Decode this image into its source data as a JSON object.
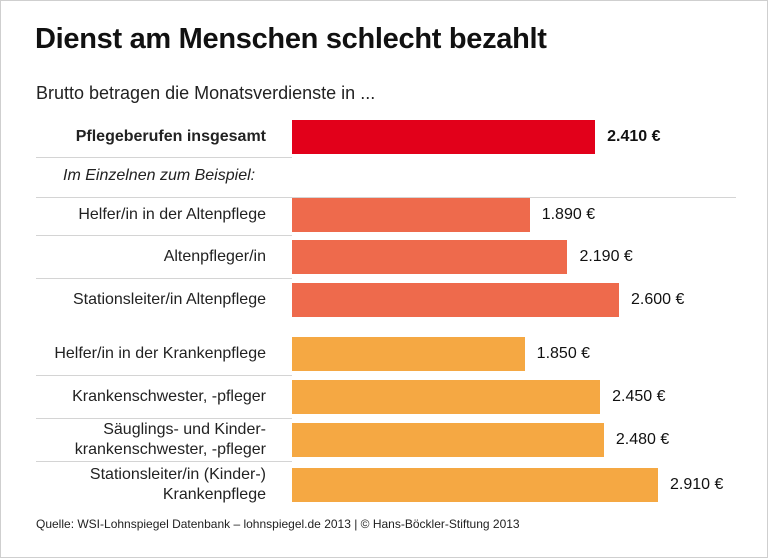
{
  "chart_data": {
    "type": "bar",
    "title": "Dienst am Menschen schlecht bezahlt",
    "subtitle": "Brutto betragen die Monatsverdienste in ...",
    "group_label": "Im Einzelnen zum Beispiel:",
    "categories": [
      "Pflegeberufen insgesamt",
      "Helfer/in in der Altenpflege",
      "Altenpfleger/in",
      "Stationsleiter/in Altenpflege",
      "Helfer/in in der Krankenpflege",
      "Krankenschwester, -pfleger",
      "Säuglings- und Kinder-\nkrankenschwester, -pfleger",
      "Stationsleiter/in (Kinder-)\nKrankenpflege"
    ],
    "values": [
      2410,
      1890,
      2190,
      2600,
      1850,
      2450,
      2480,
      2910
    ],
    "value_labels": [
      "2.410 €",
      "1.890 €",
      "2.190 €",
      "2.600 €",
      "1.850 €",
      "2.450 €",
      "2.480 €",
      "2.910 €"
    ],
    "colors": [
      "#e2001a",
      "#ee6a4c",
      "#ee6a4c",
      "#ee6a4c",
      "#f5a843",
      "#f5a843",
      "#f5a843",
      "#f5a843"
    ],
    "source": "Quelle: WSI-Lohnspiegel Datenbank – lohnspiegel.de 2013 | © Hans-Böckler-Stiftung 2013"
  }
}
